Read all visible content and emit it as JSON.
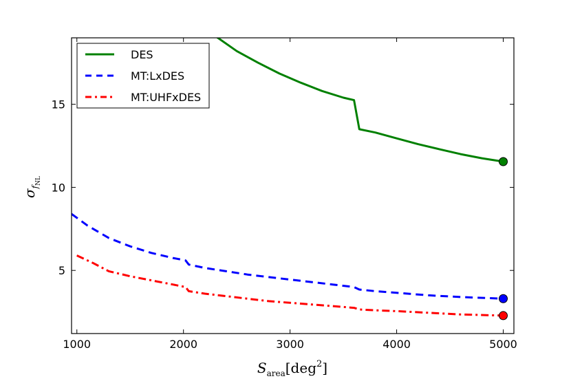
{
  "chart_data": {
    "type": "line",
    "title": "",
    "xlabel": {
      "main": "S",
      "sub": "area",
      "unit_open": "[deg",
      "unit_sup": "2",
      "unit_close": "]"
    },
    "ylabel": {
      "main": "σ",
      "sub": "f",
      "subsub": "NL"
    },
    "xlim": [
      950,
      5100
    ],
    "ylim": [
      1.2,
      19
    ],
    "xticks": [
      1000,
      2000,
      3000,
      4000,
      5000
    ],
    "yticks": [
      5,
      10,
      15
    ],
    "xtick_labels": [
      "1000",
      "2000",
      "3000",
      "4000",
      "5000"
    ],
    "ytick_labels": [
      "5",
      "10",
      "15"
    ],
    "legend_position": "top-left",
    "series": [
      {
        "name": "DES",
        "color": "#008000",
        "style": "solid",
        "x": [
          2300,
          2500,
          2700,
          2900,
          3100,
          3300,
          3500,
          3600,
          3650,
          3800,
          4000,
          4200,
          4400,
          4600,
          4800,
          5000
        ],
        "y": [
          19.1,
          18.2,
          17.5,
          16.85,
          16.3,
          15.8,
          15.4,
          15.25,
          13.5,
          13.3,
          12.95,
          12.6,
          12.3,
          12.0,
          11.75,
          11.55
        ],
        "end_marker": {
          "x": 5000,
          "y": 11.55
        }
      },
      {
        "name": "MT:LxDES",
        "color": "#0000ff",
        "style": "dashed",
        "x": [
          950,
          1100,
          1300,
          1500,
          1700,
          1900,
          2020,
          2050,
          2200,
          2400,
          2600,
          2800,
          3000,
          3200,
          3400,
          3600,
          3650,
          3800,
          4000,
          4300,
          4600,
          5000
        ],
        "y": [
          8.4,
          7.7,
          6.95,
          6.45,
          6.05,
          5.75,
          5.6,
          5.35,
          5.15,
          4.95,
          4.75,
          4.6,
          4.45,
          4.3,
          4.15,
          4.0,
          3.85,
          3.75,
          3.65,
          3.5,
          3.4,
          3.3
        ],
        "end_marker": {
          "x": 5000,
          "y": 3.3
        }
      },
      {
        "name": "MT:UHFxDES",
        "color": "#ff0000",
        "style": "dashdot",
        "x": [
          1000,
          1150,
          1300,
          1500,
          1700,
          1900,
          2020,
          2050,
          2200,
          2400,
          2600,
          2800,
          3000,
          3200,
          3400,
          3600,
          3650,
          3800,
          4000,
          4300,
          4600,
          5000
        ],
        "y": [
          5.9,
          5.45,
          4.95,
          4.65,
          4.4,
          4.15,
          4.0,
          3.75,
          3.6,
          3.45,
          3.3,
          3.15,
          3.05,
          2.95,
          2.85,
          2.75,
          2.65,
          2.6,
          2.55,
          2.45,
          2.35,
          2.28
        ],
        "end_marker": {
          "x": 5000,
          "y": 2.28
        }
      }
    ]
  }
}
